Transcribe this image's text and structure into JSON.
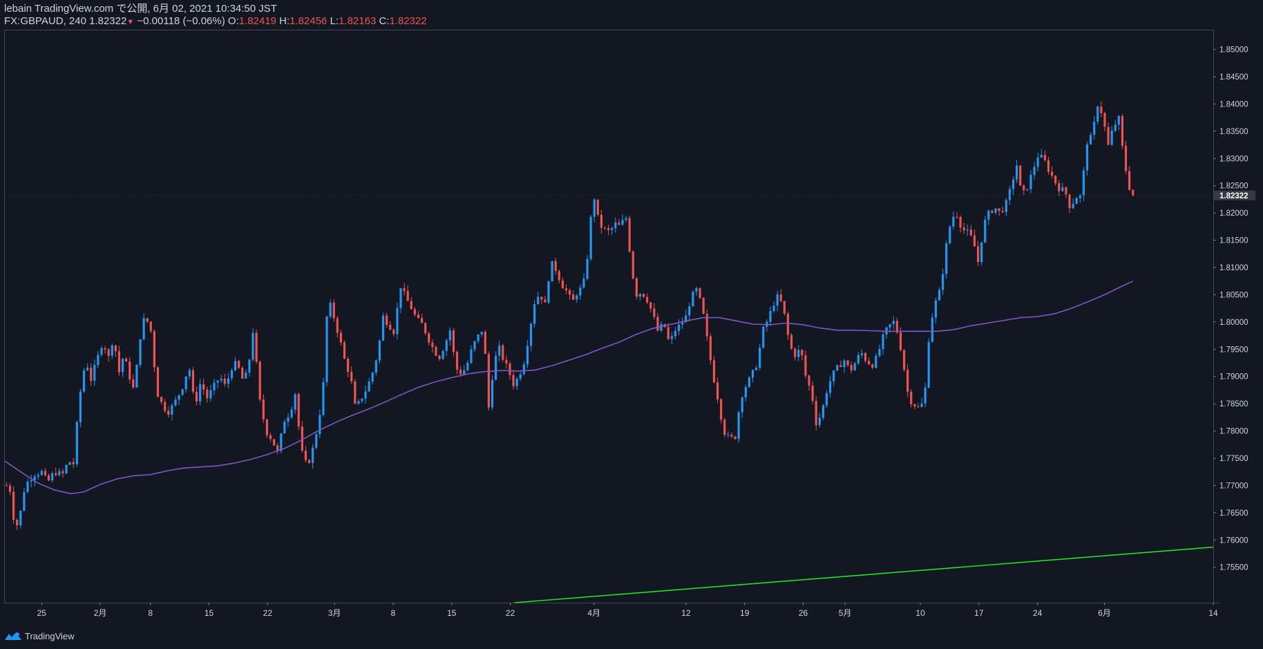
{
  "header": {
    "published": "lebain TradingView.com で公開, 6月 02, 2021 10:34:50 JST",
    "symbol": "FX:GBPAUD, 240",
    "last": "1.82322",
    "change": "−0.00118 (−0.06%)",
    "o_label": "O:",
    "o": "1.82419",
    "h_label": "H:",
    "h": "1.82456",
    "l_label": "L:",
    "l": "1.82163",
    "c_label": "C:",
    "c": "1.82322"
  },
  "footer": {
    "brand": "TradingView"
  },
  "colors": {
    "background": "#131722",
    "bull": "#2196f3",
    "bear": "#ef5350",
    "ma": "#7e57c2",
    "trendline": "#22e022",
    "axis_text": "#d1d4dc"
  },
  "chart_data": {
    "type": "candlestick",
    "symbol": "FX:GBPAUD",
    "interval": "240",
    "ylim": [
      1.7485,
      1.8535
    ],
    "y_ticks": [
      "1.85000",
      "1.84500",
      "1.84000",
      "1.83500",
      "1.83000",
      "1.82500",
      "1.82000",
      "1.81500",
      "1.81000",
      "1.80500",
      "1.80000",
      "1.79500",
      "1.79000",
      "1.78500",
      "1.78000",
      "1.77500",
      "1.77000",
      "1.76500",
      "1.76000",
      "1.75500"
    ],
    "last_price_label": "1.82322",
    "last_price": 1.82322,
    "x_ticks": [
      {
        "label": "25",
        "day": 25
      },
      {
        "label": "2月",
        "day": 32
      },
      {
        "label": "8",
        "day": 38
      },
      {
        "label": "15",
        "day": 45
      },
      {
        "label": "22",
        "day": 52
      },
      {
        "label": "3月",
        "day": 60
      },
      {
        "label": "8",
        "day": 67
      },
      {
        "label": "15",
        "day": 74
      },
      {
        "label": "22",
        "day": 81
      },
      {
        "label": "4月",
        "day": 91
      },
      {
        "label": "12",
        "day": 102
      },
      {
        "label": "19",
        "day": 109
      },
      {
        "label": "26",
        "day": 116
      },
      {
        "label": "5月",
        "day": 121
      },
      {
        "label": "10",
        "day": 130
      },
      {
        "label": "17",
        "day": 137
      },
      {
        "label": "24",
        "day": 144
      },
      {
        "label": "6月",
        "day": 152
      },
      {
        "label": "14",
        "day": 165
      }
    ],
    "xlim_days": [
      20.6,
      165
    ],
    "close_path": [
      [
        20.8,
        1.77
      ],
      [
        21.3,
        1.769
      ],
      [
        21.8,
        1.762
      ],
      [
        22.3,
        1.7635
      ],
      [
        23.0,
        1.77
      ],
      [
        24.0,
        1.772
      ],
      [
        25.0,
        1.7725
      ],
      [
        25.7,
        1.7705
      ],
      [
        26.5,
        1.7725
      ],
      [
        27.5,
        1.772
      ],
      [
        28.2,
        1.7745
      ],
      [
        28.8,
        1.774
      ],
      [
        29.5,
        1.786
      ],
      [
        30.3,
        1.7935
      ],
      [
        30.8,
        1.789
      ],
      [
        31.5,
        1.7925
      ],
      [
        32.3,
        1.7965
      ],
      [
        33.0,
        1.7935
      ],
      [
        33.6,
        1.7975
      ],
      [
        34.2,
        1.7905
      ],
      [
        34.8,
        1.794
      ],
      [
        35.5,
        1.79
      ],
      [
        36.1,
        1.787
      ],
      [
        36.6,
        1.796
      ],
      [
        37.3,
        1.801
      ],
      [
        38.0,
        1.799
      ],
      [
        38.8,
        1.787
      ],
      [
        39.5,
        1.7845
      ],
      [
        40.2,
        1.7835
      ],
      [
        41.0,
        1.7855
      ],
      [
        41.8,
        1.788
      ],
      [
        42.6,
        1.792
      ],
      [
        43.3,
        1.7845
      ],
      [
        44.0,
        1.789
      ],
      [
        44.8,
        1.786
      ],
      [
        45.5,
        1.788
      ],
      [
        46.3,
        1.79
      ],
      [
        47.0,
        1.788
      ],
      [
        47.6,
        1.7915
      ],
      [
        48.3,
        1.7925
      ],
      [
        49.0,
        1.7895
      ],
      [
        49.6,
        1.7905
      ],
      [
        50.3,
        1.799
      ],
      [
        51.0,
        1.786
      ],
      [
        51.8,
        1.78
      ],
      [
        52.5,
        1.7785
      ],
      [
        53.2,
        1.776
      ],
      [
        54.0,
        1.782
      ],
      [
        54.7,
        1.7835
      ],
      [
        55.3,
        1.787
      ],
      [
        56.0,
        1.7765
      ],
      [
        56.7,
        1.7735
      ],
      [
        57.3,
        1.776
      ],
      [
        58.0,
        1.781
      ],
      [
        58.6,
        1.787
      ],
      [
        59.2,
        1.8045
      ],
      [
        59.9,
        1.801
      ],
      [
        60.6,
        1.797
      ],
      [
        61.2,
        1.793
      ],
      [
        61.9,
        1.79
      ],
      [
        62.5,
        1.784
      ],
      [
        63.2,
        1.786
      ],
      [
        63.9,
        1.788
      ],
      [
        64.5,
        1.7905
      ],
      [
        65.2,
        1.7945
      ],
      [
        65.8,
        1.801
      ],
      [
        66.5,
        1.7995
      ],
      [
        67.2,
        1.798
      ],
      [
        67.8,
        1.807
      ],
      [
        68.5,
        1.8045
      ],
      [
        69.2,
        1.8025
      ],
      [
        69.8,
        1.8005
      ],
      [
        70.5,
        1.7995
      ],
      [
        71.2,
        1.797
      ],
      [
        71.8,
        1.795
      ],
      [
        72.5,
        1.7935
      ],
      [
        73.2,
        1.796
      ],
      [
        73.8,
        1.7985
      ],
      [
        74.5,
        1.7915
      ],
      [
        75.2,
        1.7905
      ],
      [
        75.8,
        1.792
      ],
      [
        76.5,
        1.7955
      ],
      [
        77.2,
        1.7975
      ],
      [
        77.8,
        1.799
      ],
      [
        78.4,
        1.784
      ],
      [
        79.0,
        1.792
      ],
      [
        79.6,
        1.7955
      ],
      [
        80.2,
        1.793
      ],
      [
        80.8,
        1.791
      ],
      [
        81.4,
        1.7885
      ],
      [
        82.0,
        1.79
      ],
      [
        82.7,
        1.793
      ],
      [
        83.3,
        1.7985
      ],
      [
        84.0,
        1.8045
      ],
      [
        84.6,
        1.805
      ],
      [
        85.2,
        1.803
      ],
      [
        85.8,
        1.811
      ],
      [
        86.5,
        1.8095
      ],
      [
        87.1,
        1.807
      ],
      [
        87.8,
        1.8055
      ],
      [
        88.4,
        1.8035
      ],
      [
        89.0,
        1.8055
      ],
      [
        89.7,
        1.8065
      ],
      [
        90.3,
        1.813
      ],
      [
        90.9,
        1.824
      ],
      [
        91.6,
        1.818
      ],
      [
        92.2,
        1.817
      ],
      [
        92.9,
        1.8165
      ],
      [
        93.5,
        1.818
      ],
      [
        94.1,
        1.8175
      ],
      [
        94.8,
        1.8195
      ],
      [
        95.5,
        1.81
      ],
      [
        96.0,
        1.805
      ],
      [
        96.7,
        1.8055
      ],
      [
        97.4,
        1.804
      ],
      [
        98.0,
        1.8015
      ],
      [
        98.7,
        1.798
      ],
      [
        99.3,
        1.8
      ],
      [
        100.0,
        1.796
      ],
      [
        100.7,
        1.7985
      ],
      [
        101.3,
        1.7995
      ],
      [
        102.0,
        1.801
      ],
      [
        102.6,
        1.8045
      ],
      [
        103.3,
        1.806
      ],
      [
        104.0,
        1.802
      ],
      [
        104.6,
        1.796
      ],
      [
        105.2,
        1.7905
      ],
      [
        105.8,
        1.786
      ],
      [
        106.5,
        1.78
      ],
      [
        107.2,
        1.7785
      ],
      [
        107.9,
        1.779
      ],
      [
        108.5,
        1.786
      ],
      [
        109.2,
        1.7885
      ],
      [
        109.8,
        1.79
      ],
      [
        110.5,
        1.7925
      ],
      [
        111.2,
        1.7985
      ],
      [
        111.8,
        1.8005
      ],
      [
        112.5,
        1.8035
      ],
      [
        113.1,
        1.805
      ],
      [
        113.8,
        1.801
      ],
      [
        114.4,
        1.7955
      ],
      [
        115.0,
        1.794
      ],
      [
        115.7,
        1.795
      ],
      [
        116.3,
        1.79
      ],
      [
        117.0,
        1.787
      ],
      [
        117.6,
        1.781
      ],
      [
        118.3,
        1.784
      ],
      [
        118.9,
        1.788
      ],
      [
        119.6,
        1.7905
      ],
      [
        120.3,
        1.792
      ],
      [
        120.9,
        1.793
      ],
      [
        121.6,
        1.791
      ],
      [
        122.2,
        1.7925
      ],
      [
        122.9,
        1.7945
      ],
      [
        123.5,
        1.793
      ],
      [
        124.2,
        1.792
      ],
      [
        124.8,
        1.7935
      ],
      [
        125.5,
        1.797
      ],
      [
        126.1,
        1.799
      ],
      [
        126.8,
        1.8
      ],
      [
        127.4,
        1.7975
      ],
      [
        128.0,
        1.792
      ],
      [
        128.6,
        1.786
      ],
      [
        129.2,
        1.785
      ],
      [
        129.9,
        1.784
      ],
      [
        130.5,
        1.786
      ],
      [
        131.1,
        1.799
      ],
      [
        131.8,
        1.8035
      ],
      [
        132.4,
        1.806
      ],
      [
        133.1,
        1.814
      ],
      [
        133.7,
        1.819
      ],
      [
        134.3,
        1.82
      ],
      [
        135.0,
        1.817
      ],
      [
        135.6,
        1.8165
      ],
      [
        136.3,
        1.815
      ],
      [
        136.9,
        1.811
      ],
      [
        137.6,
        1.818
      ],
      [
        138.2,
        1.82
      ],
      [
        138.9,
        1.821
      ],
      [
        139.5,
        1.82
      ],
      [
        140.2,
        1.8215
      ],
      [
        140.8,
        1.8245
      ],
      [
        141.5,
        1.829
      ],
      [
        142.1,
        1.823
      ],
      [
        142.7,
        1.8245
      ],
      [
        143.4,
        1.8275
      ],
      [
        144.0,
        1.8305
      ],
      [
        144.7,
        1.83
      ],
      [
        145.3,
        1.828
      ],
      [
        146.0,
        1.826
      ],
      [
        146.6,
        1.8245
      ],
      [
        147.3,
        1.824
      ],
      [
        147.9,
        1.821
      ],
      [
        148.6,
        1.823
      ],
      [
        149.2,
        1.823
      ],
      [
        149.9,
        1.833
      ],
      [
        150.5,
        1.834
      ],
      [
        151.2,
        1.84
      ],
      [
        151.8,
        1.838
      ],
      [
        152.4,
        1.832
      ],
      [
        153.0,
        1.8355
      ],
      [
        153.7,
        1.8375
      ],
      [
        154.3,
        1.83
      ],
      [
        154.9,
        1.825
      ],
      [
        155.4,
        1.8232
      ]
    ],
    "ma_path": [
      [
        20.6,
        1.7745
      ],
      [
        22.5,
        1.7725
      ],
      [
        24.5,
        1.7705
      ],
      [
        26.5,
        1.7692
      ],
      [
        28.5,
        1.7685
      ],
      [
        30.0,
        1.7688
      ],
      [
        32.0,
        1.7702
      ],
      [
        34.0,
        1.7712
      ],
      [
        36.0,
        1.7718
      ],
      [
        38.0,
        1.772
      ],
      [
        40.0,
        1.7727
      ],
      [
        42.0,
        1.7732
      ],
      [
        44.0,
        1.7734
      ],
      [
        46.0,
        1.7736
      ],
      [
        48.0,
        1.7741
      ],
      [
        50.0,
        1.7748
      ],
      [
        52.0,
        1.7757
      ],
      [
        54.0,
        1.7768
      ],
      [
        56.0,
        1.7783
      ],
      [
        58.0,
        1.78
      ],
      [
        60.0,
        1.7815
      ],
      [
        62.0,
        1.7828
      ],
      [
        64.0,
        1.784
      ],
      [
        66.0,
        1.7853
      ],
      [
        68.0,
        1.7867
      ],
      [
        70.0,
        1.788
      ],
      [
        72.0,
        1.789
      ],
      [
        74.0,
        1.7898
      ],
      [
        76.0,
        1.7905
      ],
      [
        78.0,
        1.7909
      ],
      [
        80.0,
        1.7911
      ],
      [
        82.0,
        1.791
      ],
      [
        84.0,
        1.7912
      ],
      [
        86.0,
        1.792
      ],
      [
        88.0,
        1.793
      ],
      [
        90.0,
        1.794
      ],
      [
        92.0,
        1.7952
      ],
      [
        94.0,
        1.7963
      ],
      [
        96.0,
        1.7977
      ],
      [
        98.0,
        1.7988
      ],
      [
        100.0,
        1.7995
      ],
      [
        102.0,
        1.8002
      ],
      [
        104.0,
        1.8008
      ],
      [
        106.0,
        1.8008
      ],
      [
        108.0,
        1.8002
      ],
      [
        110.0,
        1.7996
      ],
      [
        112.0,
        1.7995
      ],
      [
        114.0,
        1.7998
      ],
      [
        116.0,
        1.7995
      ],
      [
        118.0,
        1.7989
      ],
      [
        120.0,
        1.7985
      ],
      [
        122.0,
        1.7985
      ],
      [
        124.0,
        1.7984
      ],
      [
        126.0,
        1.7983
      ],
      [
        128.0,
        1.7983
      ],
      [
        130.0,
        1.7983
      ],
      [
        132.0,
        1.7983
      ],
      [
        134.0,
        1.7986
      ],
      [
        136.0,
        1.7993
      ],
      [
        138.0,
        1.7998
      ],
      [
        140.0,
        1.8003
      ],
      [
        142.0,
        1.8008
      ],
      [
        144.0,
        1.801
      ],
      [
        146.0,
        1.8015
      ],
      [
        148.0,
        1.8025
      ],
      [
        150.0,
        1.8037
      ],
      [
        152.0,
        1.805
      ],
      [
        154.0,
        1.8065
      ],
      [
        155.4,
        1.8075
      ]
    ],
    "trendline": [
      [
        81.5,
        1.7485
      ],
      [
        165,
        1.7587
      ]
    ]
  }
}
